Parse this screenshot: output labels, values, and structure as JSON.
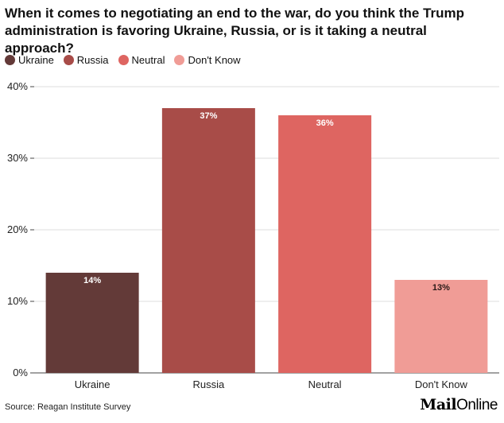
{
  "chart_data": {
    "type": "bar",
    "title": "When it comes to negotiating an end to the war, do you think the Trump administration is favoring Ukraine, Russia, or is it taking a neutral approach?",
    "categories": [
      "Ukraine",
      "Russia",
      "Neutral",
      "Don't Know"
    ],
    "values": [
      14,
      37,
      36,
      13
    ],
    "data_labels": [
      "14%",
      "37%",
      "36%",
      "13%"
    ],
    "colors": [
      "#633a38",
      "#a84c48",
      "#de6561",
      "#f09c96"
    ],
    "label_colors": [
      "#ffffff",
      "#ffffff",
      "#ffffff",
      "#2a1a18"
    ],
    "legend": [
      "Ukraine",
      "Russia",
      "Neutral",
      "Don't Know"
    ],
    "legend_position": "top-left",
    "yticks": [
      0,
      10,
      20,
      30,
      40
    ],
    "ytick_labels": [
      "0%",
      "10%",
      "20%",
      "30%",
      "40%"
    ],
    "ylim": [
      0,
      40
    ],
    "grid": true
  },
  "source": "Source: Reagan Institute Survey",
  "logo": {
    "mail": "Mail",
    "online": "Online"
  }
}
